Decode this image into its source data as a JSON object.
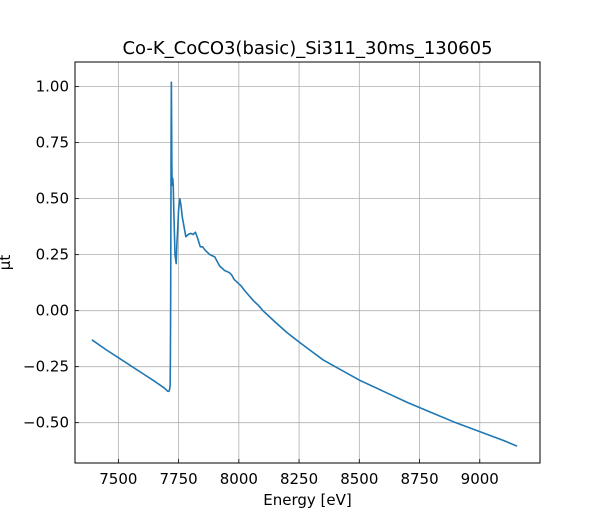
{
  "chart_data": {
    "type": "line",
    "title": "Co-K_CoCO3(basic)_Si311_30ms_130605",
    "xlabel": "Energy [eV]",
    "ylabel": "μt",
    "xlim": [
      7320,
      9250
    ],
    "ylim": [
      -0.68,
      1.11
    ],
    "xticks": [
      7500,
      7750,
      8000,
      8250,
      8500,
      8750,
      9000
    ],
    "yticks": [
      -0.5,
      -0.25,
      0.0,
      0.25,
      0.5,
      0.75,
      1.0
    ],
    "xtick_labels": [
      "7500",
      "7750",
      "8000",
      "8250",
      "8500",
      "8750",
      "9000"
    ],
    "ytick_labels": [
      "−0.50",
      "−0.25",
      "0.00",
      "0.25",
      "0.50",
      "0.75",
      "1.00"
    ],
    "grid": true,
    "line_color": "#1f77b4",
    "series": [
      {
        "x": [
          7390,
          7450,
          7500,
          7550,
          7600,
          7650,
          7690,
          7700,
          7705,
          7710,
          7713,
          7715,
          7716,
          7717,
          7718,
          7719,
          7720,
          7721,
          7722,
          7723,
          7724,
          7726,
          7728,
          7730,
          7735,
          7740,
          7743,
          7746,
          7750,
          7755,
          7760,
          7765,
          7770,
          7780,
          7790,
          7800,
          7810,
          7820,
          7830,
          7840,
          7850,
          7860,
          7870,
          7880,
          7900,
          7920,
          7940,
          7950,
          7960,
          7970,
          7980,
          8000,
          8010,
          8020,
          8040,
          8060,
          8080,
          8100,
          8125,
          8150,
          8200,
          8250,
          8300,
          8350,
          8400,
          8500,
          8600,
          8700,
          8800,
          8900,
          9000,
          9100,
          9155
        ],
        "y": [
          -0.13,
          -0.175,
          -0.21,
          -0.245,
          -0.28,
          -0.315,
          -0.345,
          -0.355,
          -0.36,
          -0.36,
          -0.35,
          -0.33,
          -0.2,
          0.05,
          0.4,
          0.8,
          1.02,
          0.85,
          0.65,
          0.57,
          0.56,
          0.59,
          0.55,
          0.45,
          0.25,
          0.21,
          0.3,
          0.36,
          0.45,
          0.5,
          0.47,
          0.42,
          0.39,
          0.33,
          0.34,
          0.345,
          0.34,
          0.35,
          0.32,
          0.285,
          0.285,
          0.27,
          0.26,
          0.25,
          0.24,
          0.2,
          0.18,
          0.175,
          0.17,
          0.16,
          0.14,
          0.12,
          0.11,
          0.095,
          0.07,
          0.045,
          0.025,
          0.0,
          -0.025,
          -0.05,
          -0.098,
          -0.14,
          -0.18,
          -0.22,
          -0.25,
          -0.31,
          -0.36,
          -0.41,
          -0.455,
          -0.5,
          -0.54,
          -0.58,
          -0.605
        ]
      }
    ]
  }
}
